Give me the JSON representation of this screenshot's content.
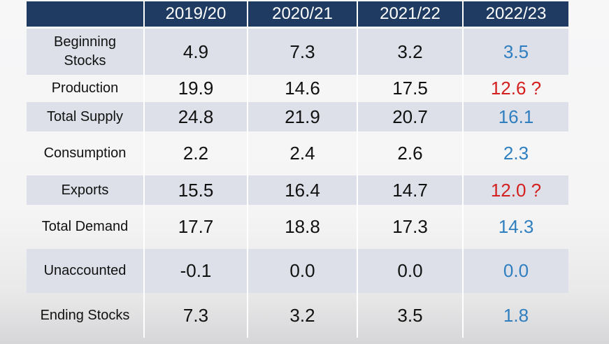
{
  "table": {
    "header": [
      "",
      "2019/20",
      "2020/21",
      "2021/22",
      "2022/23"
    ],
    "rows": [
      {
        "label": "Beginning Stocks",
        "label_line1": "Beginning",
        "label_line2": "Stocks",
        "values": [
          "4.9",
          "7.3",
          "3.2",
          "3.5"
        ],
        "last_style": "blue"
      },
      {
        "label": "Production",
        "values": [
          "19.9",
          "14.6",
          "17.5",
          "12.6 ?"
        ],
        "last_style": "red"
      },
      {
        "label": "Total Supply",
        "values": [
          "24.8",
          "21.9",
          "20.7",
          "16.1"
        ],
        "last_style": "blue"
      },
      {
        "label": "Consumption",
        "values": [
          "2.2",
          "2.4",
          "2.6",
          "2.3"
        ],
        "last_style": "blue"
      },
      {
        "label": "Exports",
        "values": [
          "15.5",
          "16.4",
          "14.7",
          "12.0 ?"
        ],
        "last_style": "red"
      },
      {
        "label": "Total Demand",
        "values": [
          "17.7",
          "18.8",
          "17.3",
          "14.3"
        ],
        "last_style": "blue"
      },
      {
        "label": "Unaccounted",
        "values": [
          "-0.1",
          "0.0",
          "0.0",
          "0.0"
        ],
        "last_style": "blue"
      },
      {
        "label": "Ending Stocks",
        "values": [
          "7.3",
          "3.2",
          "3.5",
          "1.8"
        ],
        "last_style": "blue"
      }
    ]
  },
  "colors": {
    "header_bg": "#1f3b61",
    "shaded_row_bg": "#dde0e8",
    "forecast_blue": "#2f7fc0",
    "uncertain_red": "#d41f1f"
  }
}
